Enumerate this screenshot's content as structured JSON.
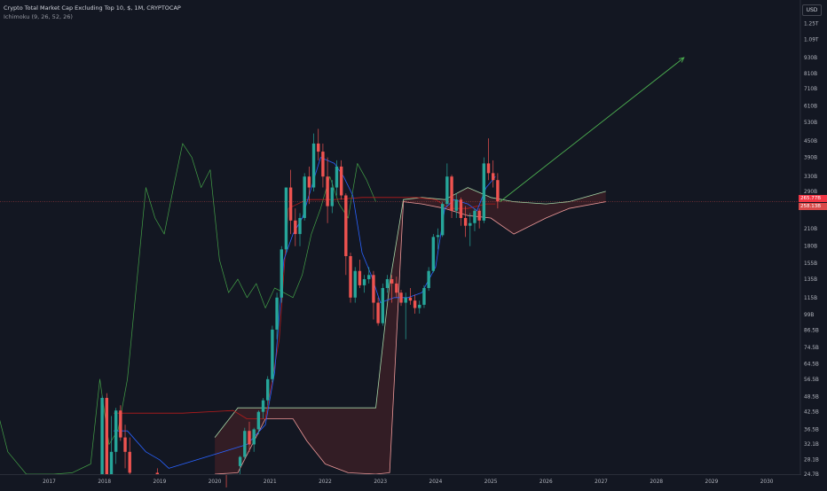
{
  "legend": {
    "title": "Crypto Total Market Cap Excluding Top 10, $, 1M, CRYPTOCAP",
    "indicator": "Ichimoku (9, 26, 52, 26)"
  },
  "currency_button": "USD",
  "last_price_tag": "265.77B",
  "kumo_price_tag": "258.13B",
  "colors": {
    "background": "#131722",
    "up": "#26a69a",
    "down": "#ef5350",
    "tenkan": "#2962ff",
    "kijun": "#b71c1c",
    "chikou": "#43a047",
    "span_a": "#a5d6a7",
    "span_b": "#ef9a9a",
    "cloud_bear": "#3a1f26",
    "arrow": "#4caf50",
    "text": "#b2b5be"
  },
  "chart_data": {
    "type": "candlestick",
    "timeframe": "1M",
    "x_ticks": [
      "2017",
      "2018",
      "2019",
      "2020",
      "2021",
      "2022",
      "2023",
      "2024",
      "2025",
      "2026",
      "2027",
      "2028",
      "2029",
      "2030"
    ],
    "y_scale": "log",
    "y_ticks": [
      {
        "label": "1.25T",
        "value": 1250
      },
      {
        "label": "1.09T",
        "value": 1090
      },
      {
        "label": "930B",
        "value": 930
      },
      {
        "label": "810B",
        "value": 810
      },
      {
        "label": "710B",
        "value": 710
      },
      {
        "label": "610B",
        "value": 610
      },
      {
        "label": "530B",
        "value": 530
      },
      {
        "label": "450B",
        "value": 450
      },
      {
        "label": "390B",
        "value": 390
      },
      {
        "label": "330B",
        "value": 330
      },
      {
        "label": "290B",
        "value": 290
      },
      {
        "label": "210B",
        "value": 210
      },
      {
        "label": "180B",
        "value": 180
      },
      {
        "label": "155B",
        "value": 155
      },
      {
        "label": "135B",
        "value": 135
      },
      {
        "label": "115B",
        "value": 115
      },
      {
        "label": "99B",
        "value": 99
      },
      {
        "label": "86.5B",
        "value": 86.5
      },
      {
        "label": "74.5B",
        "value": 74.5
      },
      {
        "label": "64.5B",
        "value": 64.5
      },
      {
        "label": "56.5B",
        "value": 56.5
      },
      {
        "label": "48.5B",
        "value": 48.5
      },
      {
        "label": "42.5B",
        "value": 42.5
      },
      {
        "label": "36.5B",
        "value": 36.5
      },
      {
        "label": "32.1B",
        "value": 32.1
      },
      {
        "label": "28.1B",
        "value": 28.1
      },
      {
        "label": "24.7B",
        "value": 24.7
      }
    ],
    "ohlc": [
      [
        "2017-12",
        23.5,
        49,
        23,
        48
      ],
      [
        "2018-01",
        48,
        50,
        22,
        24.7
      ],
      [
        "2018-02",
        24.7,
        41,
        22,
        30
      ],
      [
        "2018-03",
        30,
        44,
        27,
        43
      ],
      [
        "2018-04",
        43,
        45,
        33,
        34
      ],
      [
        "2018-05",
        34,
        38,
        26,
        30
      ],
      [
        "2018-06",
        30,
        34,
        24,
        25
      ],
      [
        "2018-12",
        25,
        26,
        18,
        19
      ],
      [
        "2020-03",
        18,
        20,
        15,
        17
      ],
      [
        "2020-06",
        26.5,
        29,
        24,
        28.7
      ],
      [
        "2020-07",
        28.7,
        37,
        28,
        36
      ],
      [
        "2020-08",
        36,
        39,
        30,
        32
      ],
      [
        "2020-09",
        32,
        37,
        30,
        36.5
      ],
      [
        "2020-10",
        36.5,
        43,
        35,
        42.5
      ],
      [
        "2020-11",
        42.5,
        48,
        40,
        47
      ],
      [
        "2020-12",
        47,
        58,
        45,
        56.5
      ],
      [
        "2021-01",
        56.5,
        90,
        55,
        87
      ],
      [
        "2021-02",
        87,
        120,
        80,
        115
      ],
      [
        "2021-03",
        115,
        180,
        110,
        175
      ],
      [
        "2021-04",
        175,
        300,
        170,
        300
      ],
      [
        "2021-05",
        300,
        350,
        200,
        225
      ],
      [
        "2021-06",
        225,
        250,
        180,
        200
      ],
      [
        "2021-07",
        200,
        240,
        180,
        230
      ],
      [
        "2021-08",
        230,
        340,
        225,
        330
      ],
      [
        "2021-09",
        330,
        360,
        260,
        300
      ],
      [
        "2021-10",
        300,
        480,
        290,
        440
      ],
      [
        "2021-11",
        440,
        500,
        380,
        410
      ],
      [
        "2021-12",
        410,
        440,
        300,
        330
      ],
      [
        "2022-01",
        330,
        390,
        220,
        255
      ],
      [
        "2022-02",
        255,
        320,
        240,
        300
      ],
      [
        "2022-03",
        300,
        380,
        280,
        360
      ],
      [
        "2022-04",
        360,
        380,
        270,
        280
      ],
      [
        "2022-05",
        280,
        285,
        140,
        165
      ],
      [
        "2022-06",
        165,
        170,
        110,
        115
      ],
      [
        "2022-07",
        115,
        150,
        110,
        145
      ],
      [
        "2022-08",
        145,
        160,
        125,
        128
      ],
      [
        "2022-09",
        128,
        140,
        120,
        135
      ],
      [
        "2022-10",
        135,
        150,
        130,
        140
      ],
      [
        "2022-11",
        140,
        145,
        95,
        110
      ],
      [
        "2022-12",
        110,
        115,
        90,
        92
      ],
      [
        "2023-01",
        92,
        130,
        90,
        125
      ],
      [
        "2023-02",
        125,
        140,
        120,
        135
      ],
      [
        "2023-03",
        135,
        140,
        110,
        130
      ],
      [
        "2023-04",
        130,
        138,
        115,
        120
      ],
      [
        "2023-05",
        120,
        123,
        107,
        110
      ],
      [
        "2023-06",
        110,
        120,
        80,
        115
      ],
      [
        "2023-07",
        115,
        125,
        108,
        112
      ],
      [
        "2023-08",
        112,
        118,
        100,
        105
      ],
      [
        "2023-09",
        105,
        112,
        100,
        108
      ],
      [
        "2023-10",
        108,
        128,
        105,
        125
      ],
      [
        "2023-11",
        125,
        150,
        122,
        145
      ],
      [
        "2023-12",
        145,
        200,
        143,
        195
      ],
      [
        "2024-01",
        195,
        210,
        175,
        198
      ],
      [
        "2024-02",
        198,
        265,
        195,
        260
      ],
      [
        "2024-03",
        260,
        370,
        255,
        330
      ],
      [
        "2024-04",
        330,
        335,
        230,
        245
      ],
      [
        "2024-05",
        245,
        285,
        230,
        270
      ],
      [
        "2024-06",
        270,
        275,
        215,
        230
      ],
      [
        "2024-07",
        230,
        255,
        195,
        215
      ],
      [
        "2024-08",
        215,
        240,
        180,
        220
      ],
      [
        "2024-09",
        220,
        250,
        205,
        245
      ],
      [
        "2024-10",
        245,
        250,
        210,
        225
      ],
      [
        "2024-11",
        225,
        390,
        220,
        370
      ],
      [
        "2024-12",
        370,
        460,
        320,
        340
      ],
      [
        "2025-01",
        340,
        380,
        300,
        320
      ],
      [
        "2025-02",
        320,
        340,
        250,
        265.77
      ]
    ],
    "tenkan": [
      [
        "2018-03",
        36
      ],
      [
        "2018-06",
        36
      ],
      [
        "2018-10",
        30
      ],
      [
        "2019-01",
        28
      ],
      [
        "2019-03",
        26
      ],
      [
        "2020-08",
        32
      ],
      [
        "2020-12",
        38
      ],
      [
        "2021-02",
        60
      ],
      [
        "2021-04",
        160
      ],
      [
        "2021-06",
        200
      ],
      [
        "2021-08",
        230
      ],
      [
        "2021-10",
        300
      ],
      [
        "2021-12",
        390
      ],
      [
        "2022-03",
        370
      ],
      [
        "2022-05",
        330
      ],
      [
        "2022-07",
        280
      ],
      [
        "2022-09",
        170
      ],
      [
        "2022-11",
        140
      ],
      [
        "2023-01",
        110
      ],
      [
        "2023-04",
        115
      ],
      [
        "2023-07",
        115
      ],
      [
        "2023-10",
        120
      ],
      [
        "2024-01",
        150
      ],
      [
        "2024-03",
        250
      ],
      [
        "2024-05",
        270
      ],
      [
        "2024-08",
        260
      ],
      [
        "2024-10",
        245
      ],
      [
        "2024-12",
        300
      ],
      [
        "2025-02",
        330
      ]
    ],
    "kijun": [
      [
        "2018-03",
        42
      ],
      [
        "2018-09",
        42
      ],
      [
        "2019-06",
        42
      ],
      [
        "2020-05",
        43
      ],
      [
        "2020-08",
        40
      ],
      [
        "2020-12",
        40
      ],
      [
        "2021-03",
        80
      ],
      [
        "2021-05",
        250
      ],
      [
        "2021-09",
        270
      ],
      [
        "2022-03",
        270
      ],
      [
        "2022-09",
        275
      ],
      [
        "2023-03",
        275
      ],
      [
        "2023-09",
        275
      ],
      [
        "2024-01",
        270
      ],
      [
        "2024-04",
        250
      ],
      [
        "2024-08",
        250
      ],
      [
        "2024-12",
        260
      ],
      [
        "2025-02",
        260
      ]
    ],
    "chikou": [
      [
        "2016-01",
        48
      ],
      [
        "2016-04",
        30
      ],
      [
        "2016-08",
        24.7
      ],
      [
        "2017-02",
        24.7
      ],
      [
        "2017-06",
        25
      ],
      [
        "2017-10",
        27
      ],
      [
        "2017-12",
        56.5
      ],
      [
        "2018-02",
        32
      ],
      [
        "2018-04",
        36.5
      ],
      [
        "2018-06",
        56.5
      ],
      [
        "2018-08",
        130
      ],
      [
        "2018-10",
        300
      ],
      [
        "2018-12",
        230
      ],
      [
        "2019-02",
        200
      ],
      [
        "2019-04",
        300
      ],
      [
        "2019-06",
        440
      ],
      [
        "2019-08",
        390
      ],
      [
        "2019-10",
        300
      ],
      [
        "2019-12",
        350
      ],
      [
        "2020-02",
        160
      ],
      [
        "2020-04",
        120
      ],
      [
        "2020-06",
        135
      ],
      [
        "2020-08",
        115
      ],
      [
        "2020-10",
        130
      ],
      [
        "2020-12",
        105
      ],
      [
        "2021-02",
        125
      ],
      [
        "2021-04",
        120
      ],
      [
        "2021-06",
        115
      ],
      [
        "2021-08",
        140
      ],
      [
        "2021-10",
        200
      ],
      [
        "2021-12",
        250
      ],
      [
        "2022-02",
        330
      ],
      [
        "2022-04",
        260
      ],
      [
        "2022-06",
        230
      ],
      [
        "2022-08",
        370
      ],
      [
        "2022-10",
        320
      ],
      [
        "2022-12",
        265
      ]
    ],
    "span_a": [
      [
        "2020-01",
        34
      ],
      [
        "2020-06",
        44
      ],
      [
        "2020-12",
        44
      ],
      [
        "2021-06",
        44
      ],
      [
        "2021-10",
        44
      ],
      [
        "2022-01",
        44
      ],
      [
        "2022-06",
        44
      ],
      [
        "2022-12",
        44
      ],
      [
        "2023-03",
        130
      ],
      [
        "2023-06",
        270
      ],
      [
        "2023-10",
        275
      ],
      [
        "2024-03",
        270
      ],
      [
        "2024-08",
        300
      ],
      [
        "2025-01",
        275
      ],
      [
        "2025-06",
        265
      ],
      [
        "2026-01",
        260
      ],
      [
        "2026-06",
        265
      ],
      [
        "2027-02",
        290
      ]
    ],
    "span_b": [
      [
        "2020-01",
        24.7
      ],
      [
        "2020-06",
        25
      ],
      [
        "2020-12",
        40
      ],
      [
        "2021-06",
        40
      ],
      [
        "2021-09",
        33
      ],
      [
        "2022-01",
        27
      ],
      [
        "2022-06",
        25
      ],
      [
        "2022-12",
        24.7
      ],
      [
        "2023-03",
        25
      ],
      [
        "2023-06",
        265
      ],
      [
        "2023-10",
        260
      ],
      [
        "2024-03",
        250
      ],
      [
        "2024-08",
        235
      ],
      [
        "2025-01",
        230
      ],
      [
        "2025-06",
        200
      ],
      [
        "2026-01",
        230
      ],
      [
        "2026-06",
        250
      ],
      [
        "2027-02",
        265
      ]
    ]
  }
}
